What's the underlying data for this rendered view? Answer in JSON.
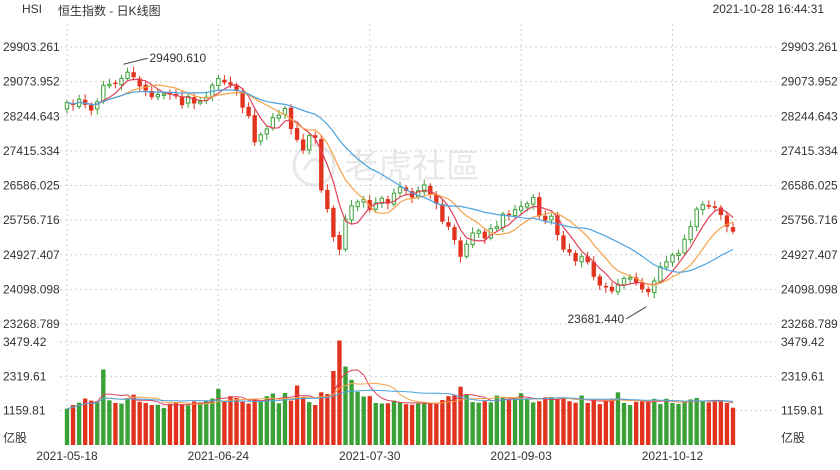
{
  "header": {
    "symbol": "HSI",
    "title": "恒生指数 - 日K线图",
    "datetime": "2021-10-28 16:44:31"
  },
  "watermark": {
    "text": "老虎社區"
  },
  "colors": {
    "up": "#3aa136",
    "down": "#e2331e",
    "ma5": "#e0405a",
    "ma10": "#f5a24a",
    "ma20": "#4aa3e0",
    "grid": "#cfcfcf",
    "axis_text": "#333333"
  },
  "chart_data": {
    "type": "candlestick",
    "title": "恒生指数 - 日K线图",
    "price_axis": {
      "ticks": [
        29903.261,
        29073.952,
        28244.643,
        27415.334,
        26586.025,
        25756.716,
        24927.407,
        24098.098,
        23268.789
      ],
      "tick_labels": [
        "29903.261",
        "29073.952",
        "28244.643",
        "27415.334",
        "26586.025",
        "25756.716",
        "24927.407",
        "24098.098",
        "23268.789"
      ],
      "range": [
        23268.789,
        29903.261
      ]
    },
    "volume_axis": {
      "ticks": [
        3479.42,
        2319.61,
        1159.81
      ],
      "tick_labels": [
        "3479.42",
        "2319.61",
        "1159.81"
      ],
      "unit": "亿股",
      "range": [
        0,
        3479.42
      ]
    },
    "x_tick_labels": [
      "2021-05-18",
      "2021-06-24",
      "2021-07-30",
      "2021-09-03",
      "2021-10-12"
    ],
    "x_tick_index": [
      0,
      25,
      50,
      75,
      100
    ],
    "annotations": [
      {
        "label": "29490.610",
        "index": 9,
        "value": 29490.61,
        "kind": "high"
      },
      {
        "label": "23681.440",
        "index": 96,
        "value": 23681.44,
        "kind": "low"
      }
    ],
    "moving_averages": [
      "MA5",
      "MA10",
      "MA20"
    ],
    "closes": [
      28572,
      28510,
      28650,
      28520,
      28380,
      28590,
      28985,
      29010,
      29020,
      29150,
      29300,
      29180,
      28960,
      28860,
      28700,
      28765,
      28780,
      28770,
      28720,
      28510,
      28720,
      28550,
      28600,
      28700,
      28990,
      29150,
      29050,
      29000,
      28850,
      28450,
      28250,
      27620,
      27800,
      27940,
      28210,
      28270,
      28430,
      27940,
      27680,
      27425,
      27780,
      27725,
      26470,
      26020,
      25350,
      25050,
      25780,
      26100,
      26190,
      26250,
      26000,
      26170,
      26280,
      26150,
      26400,
      26550,
      26460,
      26300,
      26460,
      26600,
      26380,
      26150,
      25720,
      25600,
      25280,
      24880,
      25180,
      25450,
      25500,
      25320,
      25550,
      25600,
      25900,
      25880,
      26010,
      26080,
      26150,
      26300,
      25850,
      25750,
      25850,
      25400,
      25050,
      24980,
      24770,
      24880,
      24750,
      24400,
      24190,
      24150,
      24050,
      24220,
      24360,
      24380,
      24250,
      24100,
      24030,
      24300,
      24640,
      24760,
      24920,
      24960,
      25300,
      25600,
      26020,
      26125,
      26080,
      26050,
      25880,
      25600,
      25480
    ],
    "volumes": [
      1220,
      1350,
      1430,
      1570,
      1500,
      1480,
      2550,
      1510,
      1420,
      1400,
      1580,
      1700,
      1460,
      1420,
      1350,
      1360,
      1250,
      1390,
      1430,
      1380,
      1340,
      1470,
      1440,
      1500,
      1570,
      1900,
      1460,
      1650,
      1590,
      1460,
      1400,
      1560,
      1480,
      1650,
      1740,
      1410,
      1760,
      1500,
      2010,
      1620,
      1450,
      1350,
      1780,
      1720,
      2500,
      3530,
      2650,
      2200,
      1800,
      1640,
      1650,
      1420,
      1400,
      1410,
      1500,
      1450,
      1380,
      1360,
      1400,
      1450,
      1420,
      1390,
      1520,
      1650,
      1680,
      1970,
      1720,
      1450,
      1430,
      1480,
      1440,
      1670,
      1620,
      1570,
      1600,
      1750,
      1540,
      1440,
      1480,
      1610,
      1620,
      1560,
      1610,
      1480,
      1430,
      1670,
      1420,
      1520,
      1380,
      1480,
      1560,
      1780,
      1420,
      1350,
      1460,
      1510,
      1470,
      1560,
      1380,
      1560,
      1420,
      1390,
      1440,
      1540,
      1590,
      1470,
      1440,
      1500,
      1520,
      1420,
      1260
    ],
    "opens": [
      28420,
      28560,
      28480,
      28640,
      28520,
      28420,
      28600,
      29000,
      29050,
      29000,
      29150,
      29300,
      29150,
      29000,
      28850,
      28710,
      28760,
      28800,
      28780,
      28720,
      28560,
      28700,
      28560,
      28620,
      28720,
      28980,
      29120,
      29060,
      28980,
      28840,
      28470,
      28270,
      27650,
      27820,
      27960,
      28200,
      28290,
      28450,
      27960,
      27690,
      27440,
      27790,
      27700,
      26480,
      26050,
      25400,
      25060,
      25760,
      26080,
      26190,
      26240,
      26020,
      26160,
      26260,
      26140,
      26410,
      26540,
      26450,
      26310,
      26440,
      26580,
      26370,
      26140,
      25710,
      25590,
      25270,
      24890,
      25170,
      25440,
      25480,
      25330,
      25560,
      25580,
      25910,
      25870,
      25990,
      26070,
      26140,
      26310,
      25860,
      25760,
      25870,
      25390,
      25060,
      24970,
      24760,
      24890,
      24760,
      24410,
      24180,
      24160,
      24040,
      24210,
      24350,
      24390,
      24240,
      24110,
      24020,
      24290,
      24630,
      24750,
      24910,
      24970,
      25290,
      25600,
      26010,
      26120,
      26090,
      26060,
      25870,
      25590
    ]
  }
}
